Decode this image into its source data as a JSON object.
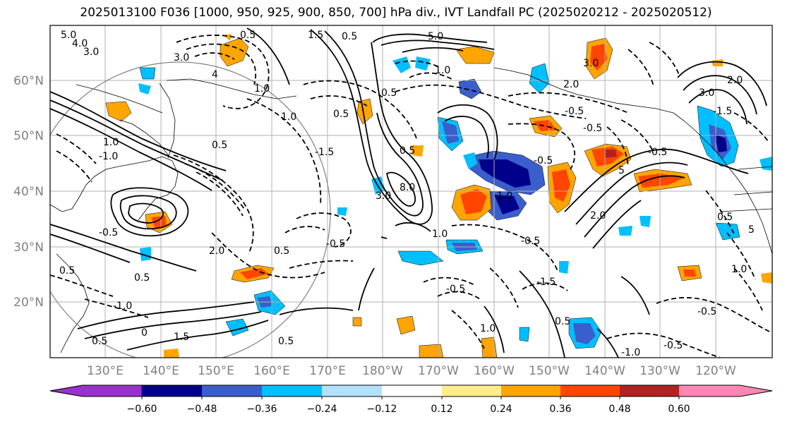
{
  "title": "2025013100 F036 [1000, 950, 925, 900, 850, 700] hPa div., IVT Landfall PC (2025020212 - 2025020512)",
  "map": {
    "lat_labels": [
      "60°N",
      "50°N",
      "40°N",
      "30°N",
      "20°N"
    ],
    "lon_labels": [
      "130°E",
      "140°E",
      "150°E",
      "160°E",
      "170°E",
      "180°W",
      "170°W",
      "160°W",
      "150°W",
      "140°W",
      "130°W",
      "120°W"
    ],
    "grid": true,
    "contour_line_color": "#000000",
    "circle_color": "#808080"
  },
  "contour_labels": [
    "5.0",
    "4.0",
    "3.0",
    "0.5",
    "3.0",
    "4",
    "1.0",
    "1.5",
    "1.0",
    "0.5",
    "1.0",
    "0.5",
    "-1.5",
    "0.5",
    "5.0",
    "1.0",
    "3.0",
    "2.0",
    "-0.5",
    "-0.5",
    "-0.5",
    "0.5",
    "0.5",
    "8.0",
    "3.0",
    "1.0",
    "-0.5",
    "2.0",
    "5",
    "1.0",
    "0.5",
    "-0.5",
    "-1.5",
    "-0.5",
    "1.0",
    "-0.5",
    "0.5",
    "-1.0",
    "1.5",
    "0.5",
    "0",
    "-1.0",
    "0.5",
    "2.0",
    "0.5",
    "-0.5",
    "1.0",
    "0.5",
    "-1.5",
    "-0.5",
    "-1.0",
    "0.5",
    "-0.5",
    "2.0",
    "3.0",
    "5"
  ],
  "colorbar": {
    "ticks": [
      "−0.60",
      "−0.48",
      "−0.36",
      "−0.24",
      "−0.12",
      "0.12",
      "0.24",
      "0.36",
      "0.48",
      "0.60"
    ],
    "colors": [
      "#9932CC",
      "#00008B",
      "#3A5FCD",
      "#00BFFF",
      "#B0E2FF",
      "#FFFFFF",
      "#FFEC8B",
      "#FFA500",
      "#FF4500",
      "#B22222",
      "#FF86B4"
    ]
  }
}
